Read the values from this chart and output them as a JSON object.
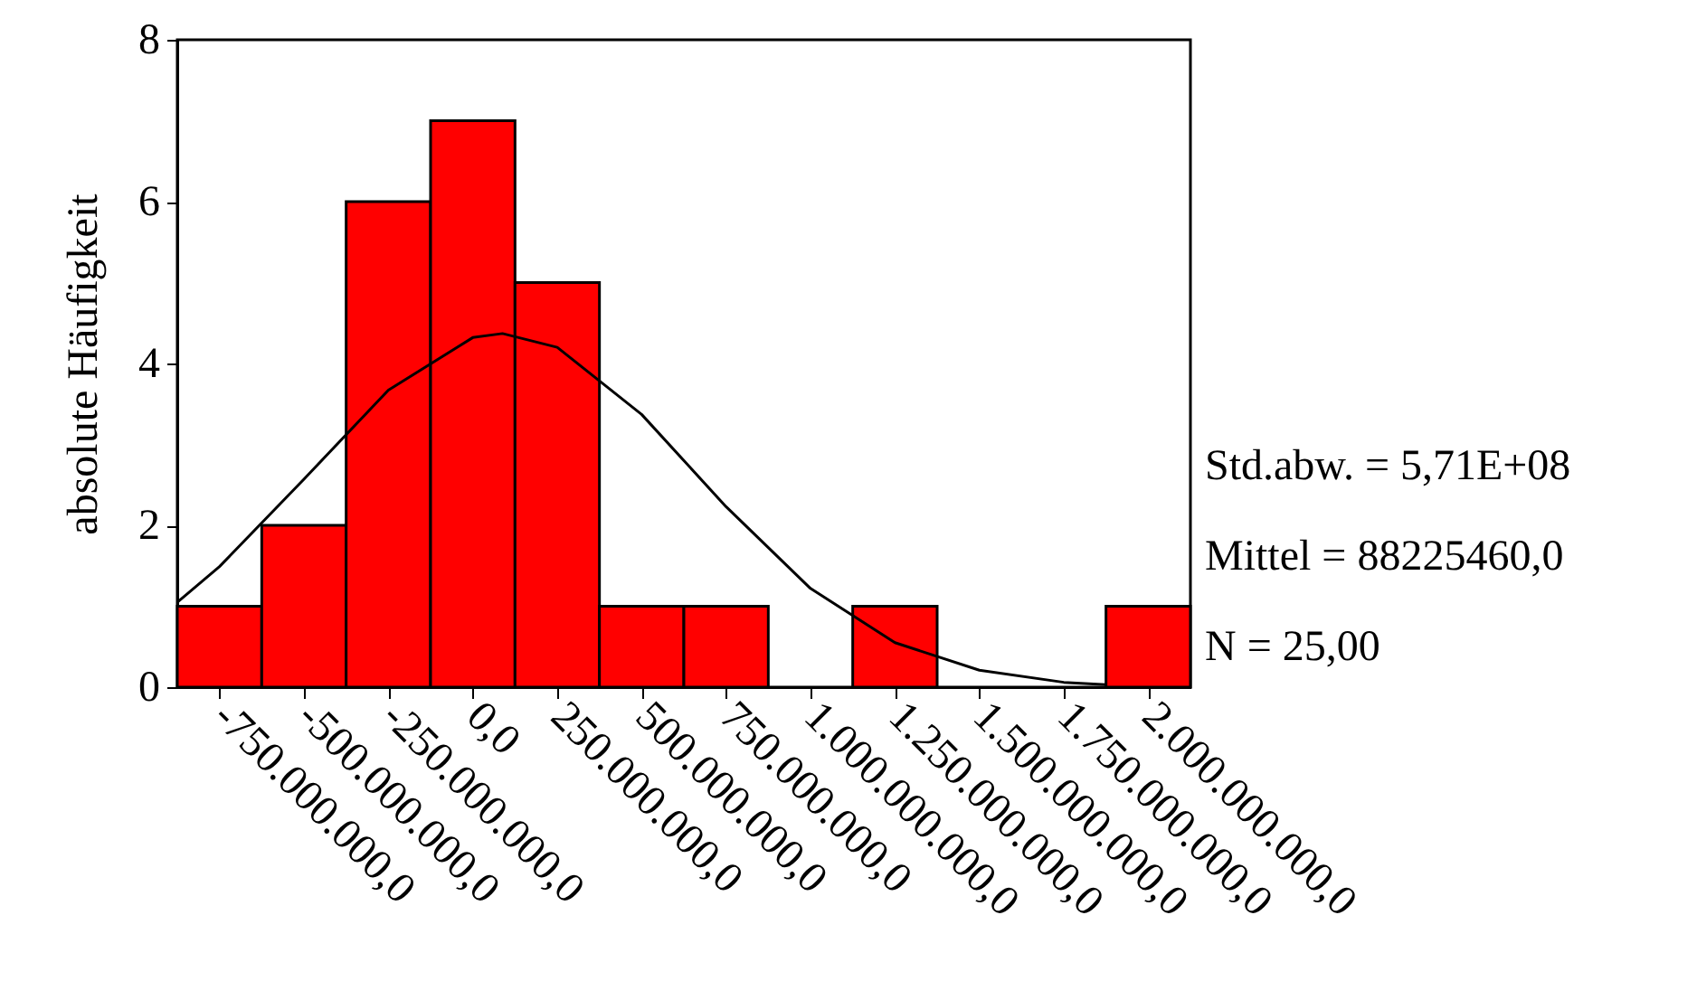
{
  "chart_data": {
    "type": "histogram",
    "ylabel": "absolute Häufigkeit",
    "bins": [
      -875000000,
      -625000000,
      -375000000,
      -125000000,
      125000000,
      375000000,
      625000000,
      875000000,
      1125000000,
      1375000000,
      1625000000,
      1875000000,
      2125000000
    ],
    "values": [
      1,
      2,
      6,
      7,
      5,
      1,
      1,
      0,
      1,
      0,
      0,
      1
    ],
    "color": "#ff0000",
    "series": [
      {
        "type": "line",
        "color": "#000000",
        "x": [
          -875000000,
          -750000000,
          -500000000,
          -250000000,
          0,
          88000000,
          250000000,
          500000000,
          750000000,
          1000000000,
          1250000000,
          1500000000,
          1750000000,
          1875000000
        ],
        "values": [
          1.05,
          1.49,
          2.57,
          3.67,
          4.32,
          4.37,
          4.2,
          3.37,
          2.23,
          1.22,
          0.55,
          0.21,
          0.06,
          0.03
        ]
      }
    ],
    "xlim": [
      -875000000,
      2125000000
    ],
    "xticks": [
      {
        "value": -750000000,
        "label": "-750.000.000,0"
      },
      {
        "value": -500000000,
        "label": "-500.000.000,0"
      },
      {
        "value": -250000000,
        "label": "-250.000.000,0"
      },
      {
        "value": 0,
        "label": "0,0"
      },
      {
        "value": 250000000,
        "label": "250.000.000,0"
      },
      {
        "value": 500000000,
        "label": "500.000.000,0"
      },
      {
        "value": 750000000,
        "label": "750.000.000,0"
      },
      {
        "value": 1000000000,
        "label": "1.000.000.000,0"
      },
      {
        "value": 1250000000,
        "label": "1.250.000.000,0"
      },
      {
        "value": 1500000000,
        "label": "1.500.000.000,0"
      },
      {
        "value": 1750000000,
        "label": "1.750.000.000,0"
      },
      {
        "value": 2000000000,
        "label": "2.000.000.000,0"
      }
    ],
    "ylim": [
      0,
      8
    ],
    "yticks": [
      0,
      2,
      4,
      6,
      8
    ],
    "annotations": [
      "Std.abw. = 5,71E+08",
      "Mittel = 88225460,0",
      "N = 25,00"
    ]
  }
}
